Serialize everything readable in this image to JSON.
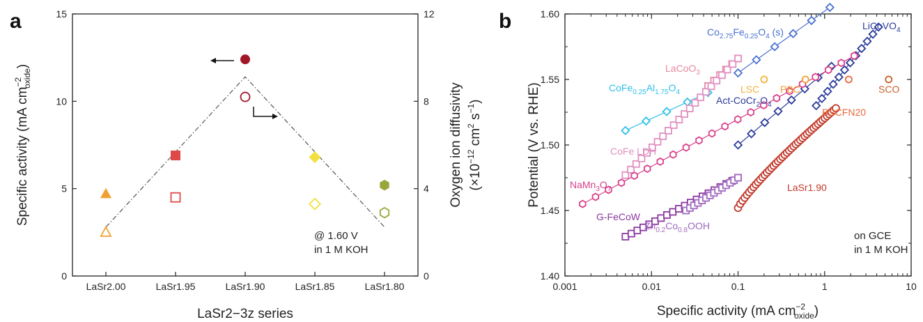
{
  "chart_data": [
    {
      "panel": "a",
      "type": "scatter",
      "categories": [
        "LaSr2.00",
        "LaSr1.95",
        "LaSr1.90",
        "LaSr1.85",
        "LaSr1.80"
      ],
      "xlabel": "LaSr2−3z series",
      "ylabel": "Specific activity (mA cm⁻²oxide)",
      "ylabel_main": "Specific activity (mA cm",
      "ylabel_sup": "−2",
      "ylabel_sub": "oxide",
      "ylim": [
        0,
        15
      ],
      "yticks": [
        0,
        5,
        10,
        15
      ],
      "y2label_line1": "Oxygen ion diffusivity",
      "y2label_line2": "(×10⁻¹² cm² s⁻¹)",
      "y2label_l2_a": "(×10",
      "y2label_l2_sup1": "−12",
      "y2label_l2_b": " cm",
      "y2label_l2_sup2": "2",
      "y2label_l2_c": " s",
      "y2label_l2_sup3": "−1",
      "y2label_l2_d": ")",
      "y2lim": [
        0,
        12
      ],
      "y2ticks": [
        0,
        4,
        8,
        12
      ],
      "annotation_line1": "@ 1.60 V",
      "annotation_line2": "in 1 M KOH",
      "series": [
        {
          "name": "",
          "axis": "left",
          "filled": true,
          "values": [
            4.7,
            6.9,
            12.4,
            6.8,
            5.2
          ],
          "markers": [
            "triangle",
            "square",
            "circle",
            "diamond",
            "hexagon"
          ],
          "colors": [
            "#f0a030",
            "#e04848",
            "#a01828",
            "#f2e040",
            "#9aa63a"
          ]
        },
        {
          "name": "",
          "axis": "right",
          "filled": false,
          "values": [
            2.0,
            3.6,
            8.2,
            3.3,
            2.9
          ],
          "markers": [
            "triangle",
            "square",
            "circle",
            "diamond",
            "hexagon"
          ],
          "colors": [
            "#f0a030",
            "#e04848",
            "#a01828",
            "#f2e040",
            "#9aa63a"
          ]
        }
      ],
      "trend_line": {
        "x": [
          0,
          2,
          4
        ],
        "y": [
          2.8,
          11.4,
          2.8
        ],
        "style": "dash-dot"
      }
    },
    {
      "panel": "b",
      "type": "line",
      "xlabel": "Specific activity (mA cm⁻²oxide)",
      "xlabel_main": "Specific activity (mA cm",
      "xlabel_sup": "−2",
      "xlabel_sub": "oxide",
      "ylabel": "Potential (V vs. RHE)",
      "xscale": "log",
      "xlim": [
        0.001,
        10
      ],
      "xticks": [
        0.001,
        0.01,
        0.1,
        1,
        10
      ],
      "xtick_labels": [
        "0.001",
        "0.01",
        "0.1",
        "1",
        "10"
      ],
      "ylim": [
        1.4,
        1.6
      ],
      "yticks": [
        1.4,
        1.45,
        1.5,
        1.55,
        1.6
      ],
      "ytick_labels": [
        "1.40",
        "1.45",
        "1.50",
        "1.55",
        "1.60"
      ],
      "annotation_line1": "on GCE",
      "annotation_line2": "in 1 M KOH",
      "series": [
        {
          "name": "LaSr1.90",
          "color": "#c0392b",
          "marker": "circle",
          "x_range": [
            0.1,
            1.35
          ],
          "y_range": [
            1.452,
            1.528
          ],
          "points": 45,
          "curve": 0.85
        },
        {
          "name": "Co2.75Fe0.25O4 (s)",
          "color": "#4a6fd0",
          "marker": "diamond",
          "x_range": [
            0.1,
            1.15
          ],
          "y_range": [
            1.555,
            1.605
          ],
          "points": 6,
          "curve": 1.0
        },
        {
          "name": "LiCoVO4",
          "color": "#2a3a9a",
          "marker": "diamond",
          "x_range": [
            0.8,
            4.2
          ],
          "y_range": [
            1.53,
            1.59
          ],
          "points": 12,
          "curve": 1.0
        },
        {
          "name": "Act-CoCr2O4",
          "color": "#2a3a9a",
          "marker": "diamond",
          "x_range": [
            0.1,
            1.2
          ],
          "y_range": [
            1.5,
            1.56
          ],
          "points": 8,
          "curve": 1.0
        },
        {
          "name": "CoFe0.25Al1.75O4",
          "color": "#30c0e8",
          "marker": "diamond",
          "x_range": [
            0.005,
            0.045
          ],
          "y_range": [
            1.511,
            1.54
          ],
          "points": 5,
          "curve": 1.0
        },
        {
          "name": "LaCoO3",
          "color": "#e88aa0",
          "marker": "square",
          "x_range": [
            0.045,
            0.1
          ],
          "y_range": [
            1.545,
            1.566
          ],
          "points": 6,
          "curve": 1.0
        },
        {
          "name": "CoFe LDH",
          "color": "#e090c0",
          "marker": "square",
          "x_range": [
            0.005,
            0.1
          ],
          "y_range": [
            1.477,
            1.566
          ],
          "points": 22,
          "curve": 1.0
        },
        {
          "name": "NaMn3O7",
          "color": "#d8408a",
          "marker": "hexagon",
          "x_range": [
            0.0016,
            2.2
          ],
          "y_range": [
            1.455,
            1.568
          ],
          "points": 22,
          "curve": 1.0
        },
        {
          "name": "G-FeCoW",
          "color": "#8a3aa0",
          "marker": "square",
          "x_range": [
            0.005,
            0.1
          ],
          "y_range": [
            1.43,
            1.475
          ],
          "points": 20,
          "curve": 1.0
        },
        {
          "name": "Zn0.2Co0.8OOH",
          "color": "#a06ac0",
          "marker": "square",
          "x_range": [
            0.025,
            0.1
          ],
          "y_range": [
            1.45,
            1.475
          ],
          "points": 14,
          "curve": 1.0
        },
        {
          "name": "LSC",
          "color": "#f0b43c",
          "marker": "circle",
          "x": [
            0.2
          ],
          "y": [
            1.55
          ]
        },
        {
          "name": "PBC",
          "color": "#f0a030",
          "marker": "circle",
          "x": [
            0.6
          ],
          "y": [
            1.55
          ]
        },
        {
          "name": "BSCFN20",
          "color": "#e86838",
          "marker": "circle",
          "x": [
            1.9
          ],
          "y": [
            1.55
          ]
        },
        {
          "name": "SCO",
          "color": "#c8602a",
          "marker": "circle",
          "x": [
            5.5
          ],
          "y": [
            1.55
          ]
        }
      ],
      "labels": [
        {
          "series": "Co2.75Fe0.25O4 (s)",
          "parts": [
            [
              "Co",
              ""
            ],
            [
              "2.75",
              "sub"
            ],
            [
              "Fe",
              ""
            ],
            [
              "0.25",
              "sub"
            ],
            [
              "O",
              ""
            ],
            [
              "4",
              "sub"
            ],
            [
              " (s)",
              ""
            ]
          ],
          "color": "#4a6fd0"
        },
        {
          "series": "LiCoVO4",
          "parts": [
            [
              "LiCoVO",
              ""
            ],
            [
              "4",
              "sub"
            ]
          ],
          "color": "#2a3a9a"
        },
        {
          "series": "LaCoO3",
          "parts": [
            [
              "LaCoO",
              ""
            ],
            [
              "3",
              "sub"
            ]
          ],
          "color": "#e88aa0"
        },
        {
          "series": "LSC",
          "parts": [
            [
              "LSC",
              ""
            ]
          ],
          "color": "#f0b43c"
        },
        {
          "series": "PBC",
          "parts": [
            [
              "PBC",
              ""
            ]
          ],
          "color": "#f0a030"
        },
        {
          "series": "SCO",
          "parts": [
            [
              "SCO",
              ""
            ]
          ],
          "color": "#c8602a"
        },
        {
          "series": "CoFe0.25Al1.75O4",
          "parts": [
            [
              "CoFe",
              ""
            ],
            [
              "0.25",
              "sub"
            ],
            [
              "Al",
              ""
            ],
            [
              "1.75",
              "sub"
            ],
            [
              "O",
              ""
            ],
            [
              "4",
              "sub"
            ]
          ],
          "color": "#30c0e8"
        },
        {
          "series": "Act-CoCr2O4",
          "parts": [
            [
              "Act-CoCr",
              ""
            ],
            [
              "2",
              "sub"
            ],
            [
              "O",
              ""
            ],
            [
              "4",
              "sub"
            ]
          ],
          "color": "#2a3a9a"
        },
        {
          "series": "BSCFN20",
          "parts": [
            [
              "BSCFN20",
              ""
            ]
          ],
          "color": "#e86838"
        },
        {
          "series": "CoFe LDH",
          "parts": [
            [
              "CoFe LDH",
              ""
            ]
          ],
          "color": "#e090c0"
        },
        {
          "series": "LaSr1.90",
          "parts": [
            [
              "LaSr1.90",
              ""
            ]
          ],
          "color": "#c0392b"
        },
        {
          "series": "NaMn3O7",
          "parts": [
            [
              "NaMn",
              ""
            ],
            [
              "3",
              "sub"
            ],
            [
              "O",
              ""
            ],
            [
              "7",
              "sub"
            ]
          ],
          "color": "#d8408a"
        },
        {
          "series": "G-FeCoW",
          "parts": [
            [
              "G-FeCoW",
              ""
            ]
          ],
          "color": "#8a3aa0"
        },
        {
          "series": "Zn0.2Co0.8OOH",
          "parts": [
            [
              "Zn",
              ""
            ],
            [
              "0.2",
              "sub"
            ],
            [
              "Co",
              ""
            ],
            [
              "0.8",
              "sub"
            ],
            [
              "OOH",
              ""
            ]
          ],
          "color": "#a06ac0"
        }
      ]
    }
  ]
}
